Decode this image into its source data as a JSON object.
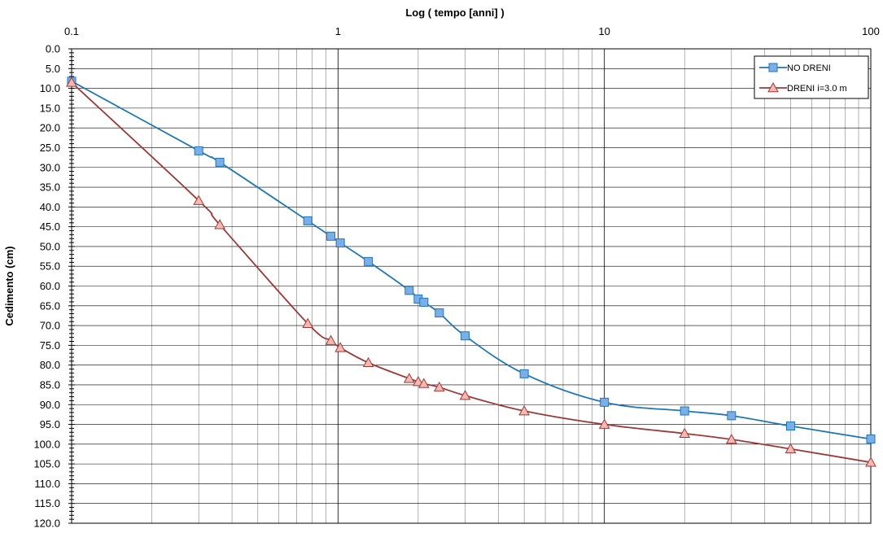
{
  "chart_data": {
    "type": "line",
    "xlabel": "Log ( tempo [anni] )",
    "ylabel": "Cedimento (cm)",
    "x_scale": "log",
    "xlim": [
      0.1,
      100
    ],
    "x_ticks": [
      "0.1",
      "1",
      "10",
      "100"
    ],
    "ylim": [
      0,
      120
    ],
    "y_inverted": true,
    "y_ticks": [
      "0.0",
      "5.0",
      "10.0",
      "15.0",
      "20.0",
      "25.0",
      "30.0",
      "35.0",
      "40.0",
      "45.0",
      "50.0",
      "55.0",
      "60.0",
      "65.0",
      "70.0",
      "75.0",
      "80.0",
      "85.0",
      "90.0",
      "95.0",
      "100.0",
      "105.0",
      "110.0",
      "115.0",
      "120.0"
    ],
    "grid": true,
    "legend_position": "top-right",
    "series": [
      {
        "name": "NO DRENI",
        "color": "#1f77b4",
        "marker": "square",
        "marker_color": "#7aaee8",
        "x": [
          0.1,
          0.3,
          0.36,
          0.77,
          0.94,
          1.02,
          1.3,
          1.85,
          2.0,
          2.1,
          2.4,
          3.0,
          5.0,
          10,
          20,
          30,
          50,
          100
        ],
        "y": [
          8.2,
          25.8,
          28.7,
          43.5,
          47.4,
          49.1,
          53.8,
          61.1,
          63.3,
          64.1,
          66.8,
          72.6,
          82.2,
          89.4,
          91.6,
          92.8,
          95.4,
          98.7
        ]
      },
      {
        "name": "DRENI i=3.0 m",
        "color": "#9b3a3a",
        "marker": "triangle",
        "marker_color": "#f4b9b0",
        "x": [
          0.1,
          0.3,
          0.36,
          0.77,
          0.94,
          1.02,
          1.3,
          1.85,
          2.0,
          2.1,
          2.4,
          3.0,
          5.0,
          10,
          20,
          30,
          50,
          100
        ],
        "y": [
          8.5,
          38.4,
          44.5,
          69.5,
          73.8,
          75.6,
          79.4,
          83.4,
          84.2,
          84.7,
          85.6,
          87.7,
          91.6,
          95.0,
          97.3,
          98.8,
          101.2,
          104.6
        ]
      }
    ]
  }
}
